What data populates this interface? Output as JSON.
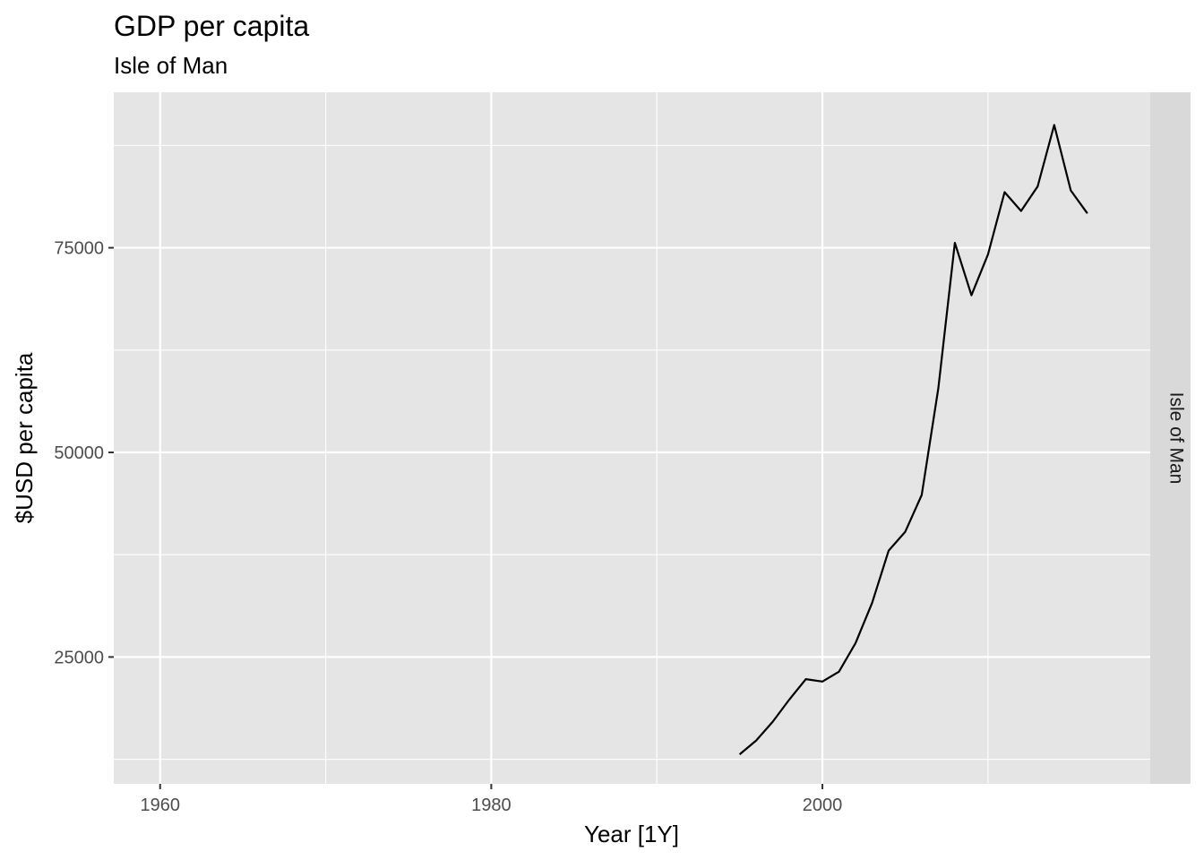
{
  "chart_data": {
    "type": "line",
    "title": "GDP per capita",
    "subtitle": "Isle of Man",
    "xlabel": "Year [1Y]",
    "ylabel": "$USD per capita",
    "facet_label": "Isle of Man",
    "xlim": [
      1957.2,
      2019.8
    ],
    "ylim": [
      9500,
      94000
    ],
    "x_ticks": [
      1960,
      1980,
      2000
    ],
    "x_minor_ticks": [
      1970,
      1990,
      2010
    ],
    "y_ticks": [
      25000,
      50000,
      75000
    ],
    "y_minor_ticks": [
      12500,
      37500,
      62500,
      87500
    ],
    "grid": true,
    "legend": "none",
    "colors": {
      "panel_background": "#e5e5e5",
      "grid": "#ffffff",
      "strip_background": "#d9d9d9",
      "line": "#000000"
    },
    "series": [
      {
        "x": [
          1995,
          1996,
          1997,
          1998,
          1999,
          2000,
          2001,
          2002,
          2003,
          2004,
          2005,
          2006,
          2007,
          2008,
          2009,
          2010,
          2011,
          2012,
          2013,
          2014,
          2015,
          2016
        ],
        "values": [
          13100,
          14800,
          17100,
          19800,
          22300,
          22000,
          23200,
          26700,
          31600,
          38000,
          40300,
          44800,
          57800,
          75600,
          69200,
          74200,
          81800,
          79500,
          82500,
          90000,
          82000,
          79200
        ]
      }
    ]
  }
}
